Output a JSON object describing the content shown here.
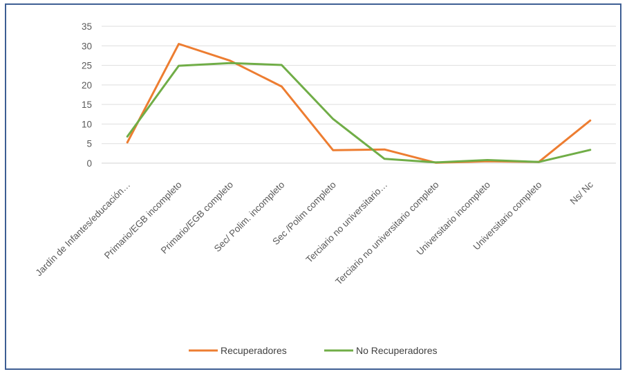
{
  "chart_data": {
    "type": "line",
    "title": "",
    "xlabel": "",
    "ylabel": "",
    "ylim": [
      0,
      35
    ],
    "yticks": [
      0,
      5,
      10,
      15,
      20,
      25,
      30,
      35
    ],
    "grid": true,
    "legend_position": "bottom",
    "categories": [
      "Jardín de Infantes/educación…",
      "Primario/EGB incompleto",
      "Primario/EGB completo",
      "Sec/ Polim. incompleto",
      "Sec /Polim completo",
      "Terciario no universitario…",
      "Terciario no universitario completo",
      "Universitario incompleto",
      "Universitario completo",
      "Ns/ Nc"
    ],
    "series": [
      {
        "name": "Recuperadores",
        "color": "#ED7D31",
        "values": [
          5.3,
          30.5,
          26.2,
          19.6,
          3.3,
          3.5,
          0.1,
          0.5,
          0.3,
          10.9
        ]
      },
      {
        "name": "No Recuperadores",
        "color": "#70AD47",
        "values": [
          6.8,
          24.9,
          25.6,
          25.1,
          11.3,
          1.1,
          0.2,
          0.8,
          0.3,
          3.4
        ]
      }
    ]
  }
}
